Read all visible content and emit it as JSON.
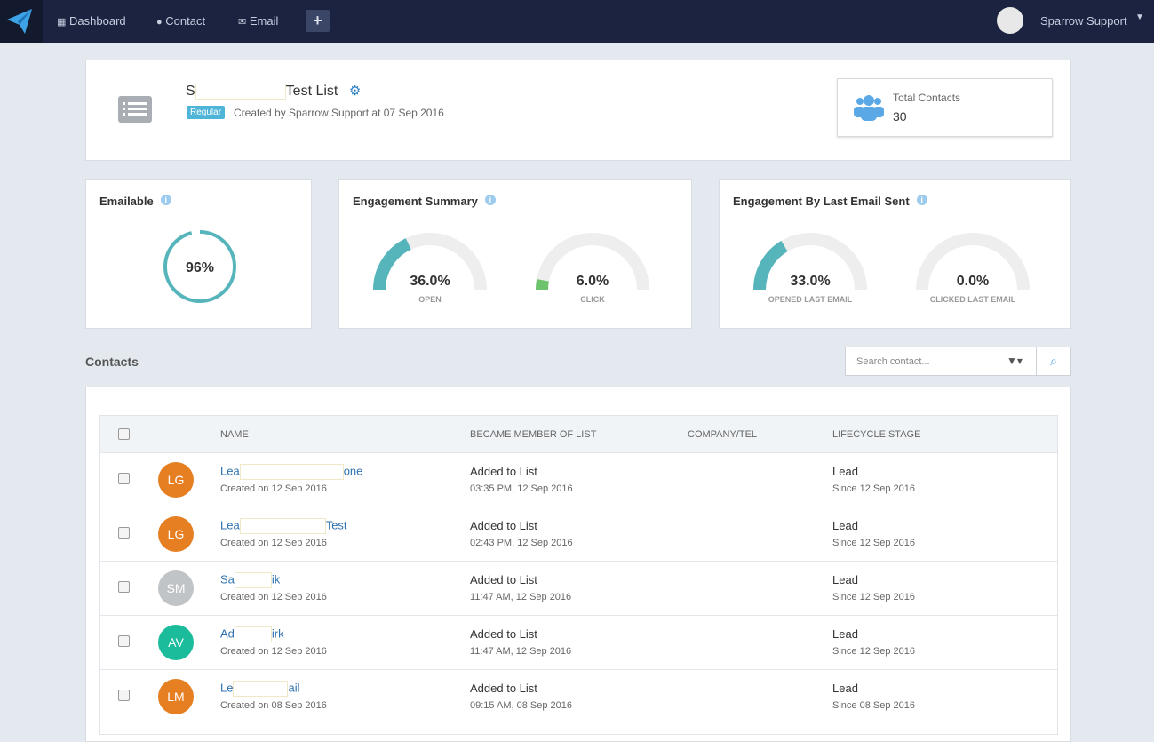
{
  "nav": {
    "items": [
      "Dashboard",
      "Contact",
      "Email"
    ],
    "user": "Sparrow Support"
  },
  "list": {
    "title": [
      "S",
      "Test List"
    ],
    "badge": "Regular",
    "created": "Created by Sparrow Support at 07 Sep 2016"
  },
  "total_contacts": {
    "label": "Total Contacts",
    "value": 30
  },
  "emailable": {
    "title": "Emailable",
    "value": 96,
    "label": "96%"
  },
  "engagement_summary": {
    "title": "Engagement Summary",
    "gauges": [
      {
        "value": 36,
        "label": "36.0%",
        "caption": "OPEN",
        "color": "#56b4bb"
      },
      {
        "value": 6,
        "label": "6.0%",
        "caption": "CLICK",
        "color": "#6cc36c"
      }
    ]
  },
  "engagement_last": {
    "title": "Engagement By Last Email Sent",
    "gauges": [
      {
        "value": 33,
        "label": "33.0%",
        "caption": "OPENED LAST EMAIL",
        "color": "#56b4bb"
      },
      {
        "value": 0,
        "label": "0.0%",
        "caption": "CLICKED LAST EMAIL",
        "color": "#56b4bb"
      }
    ]
  },
  "contacts": {
    "title": "Contacts",
    "search_placeholder": "Search contact...",
    "columns": [
      "NAME",
      "BECAME MEMBER OF LIST",
      "COMPANY/TEL",
      "LIFECYCLE STAGE"
    ],
    "rows": [
      {
        "initials": "LG",
        "avatar_color": "#e67e22",
        "name": [
          "Lea",
          "one"
        ],
        "created": "Created on 12 Sep 2016",
        "member": "Added to List",
        "member_time": "03:35 PM, 12 Sep 2016",
        "stage": "Lead",
        "since": "Since 12 Sep 2016"
      },
      {
        "initials": "LG",
        "avatar_color": "#e67e22",
        "name": [
          "Lea",
          "Test"
        ],
        "created": "Created on 12 Sep 2016",
        "member": "Added to List",
        "member_time": "02:43 PM, 12 Sep 2016",
        "stage": "Lead",
        "since": "Since 12 Sep 2016"
      },
      {
        "initials": "SM",
        "avatar_color": "#c0c4c7",
        "name": [
          "Sa",
          "ik"
        ],
        "created": "Created on 12 Sep 2016",
        "member": "Added to List",
        "member_time": "11:47 AM, 12 Sep 2016",
        "stage": "Lead",
        "since": "Since 12 Sep 2016"
      },
      {
        "initials": "AV",
        "avatar_color": "#1abc9c",
        "name": [
          "Ad",
          "irk"
        ],
        "created": "Created on 12 Sep 2016",
        "member": "Added to List",
        "member_time": "11:47 AM, 12 Sep 2016",
        "stage": "Lead",
        "since": "Since 12 Sep 2016"
      },
      {
        "initials": "LM",
        "avatar_color": "#e67e22",
        "name": [
          "Le",
          "ail"
        ],
        "created": "Created on 08 Sep 2016",
        "member": "Added to List",
        "member_time": "09:15 AM, 08 Sep 2016",
        "stage": "Lead",
        "since": "Since 08 Sep 2016"
      }
    ]
  }
}
